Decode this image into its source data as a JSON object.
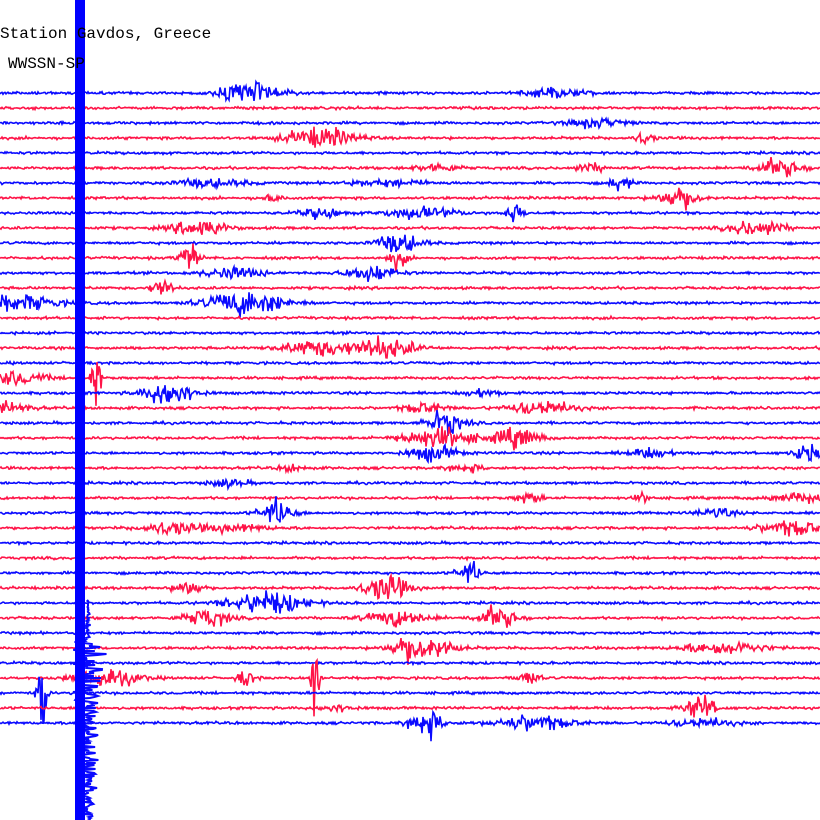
{
  "header": {
    "station": "Station Gavdos, Greece",
    "network": "WWSSN-SP"
  }
}
